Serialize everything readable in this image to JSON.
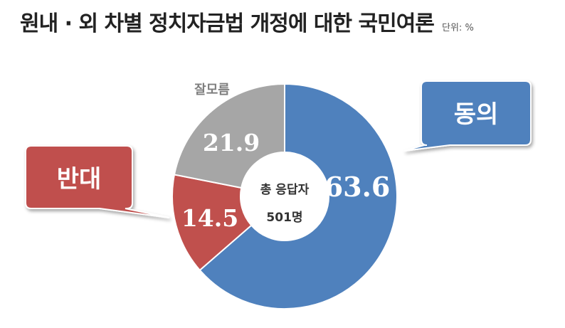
{
  "title": "원내 · 외 차별 정치자금법 개정에 대한 국민여론",
  "unit": "단위: %",
  "chart_data": {
    "type": "pie",
    "variant": "donut",
    "center_text": [
      "총 응답자",
      "501명"
    ],
    "slices": [
      {
        "label": "동의",
        "value": 63.6,
        "value_text": "63.6",
        "color": "#4F81BD"
      },
      {
        "label": "반대",
        "value": 14.5,
        "value_text": "14.5",
        "color": "#C0504D"
      },
      {
        "label": "잘모름",
        "value": 21.9,
        "value_text": "21.9",
        "color": "#A6A6A6"
      }
    ],
    "legend": "callouts"
  }
}
